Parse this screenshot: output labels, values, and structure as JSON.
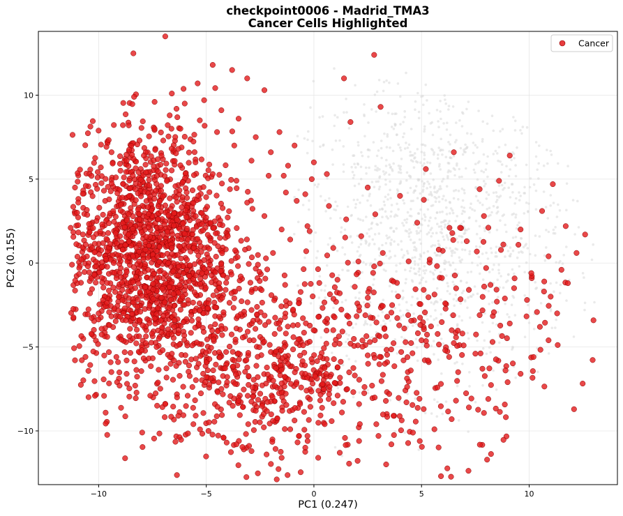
{
  "chart_data": {
    "type": "scatter",
    "title_line1": "checkpoint0006 - Madrid_TMA3",
    "title_line2": "Cancer Cells Highlighted",
    "xlabel": "PC1 (0.247)",
    "ylabel": "PC2 (0.155)",
    "xlim": [
      -12.8,
      14.1
    ],
    "ylim": [
      -13.2,
      13.8
    ],
    "xticks": [
      -10,
      -5,
      0,
      5,
      10
    ],
    "yticks": [
      -10,
      -5,
      0,
      5,
      10
    ],
    "xtick_labels": [
      "−10",
      "−5",
      "0",
      "5",
      "10"
    ],
    "ytick_labels": [
      "−10",
      "−5",
      "0",
      "5",
      "10"
    ],
    "grid": true,
    "legend": {
      "position": "top-right",
      "entries": [
        "Cancer"
      ]
    },
    "series": [
      {
        "name": "Cancer",
        "color": "#e31a1c",
        "highlight": true,
        "points": [
          [
            -10.6,
            4.6
          ],
          [
            -11.1,
            4.5
          ],
          [
            -11.3,
            2.1
          ],
          [
            -10.8,
            0.2
          ],
          [
            -10.4,
            -1.8
          ],
          [
            -10.0,
            -3.0
          ],
          [
            -9.6,
            -4.4
          ],
          [
            -9.1,
            -5.9
          ],
          [
            -8.7,
            -6.6
          ],
          [
            -8.3,
            -7.3
          ],
          [
            -7.6,
            -7.9
          ],
          [
            -6.9,
            -8.4
          ],
          [
            -6.3,
            -9.1
          ],
          [
            -5.6,
            -9.6
          ],
          [
            -4.9,
            -10.0
          ],
          [
            -4.2,
            -10.4
          ],
          [
            -3.6,
            -10.8
          ],
          [
            -2.9,
            -11.2
          ],
          [
            -2.2,
            -11.4
          ],
          [
            -1.5,
            -11.6
          ],
          [
            -0.4,
            -11.0
          ],
          [
            0.2,
            -11.6
          ],
          [
            1.2,
            -11.3
          ],
          [
            2.1,
            -10.6
          ],
          [
            3.0,
            -10.3
          ],
          [
            3.6,
            -10.8
          ],
          [
            4.6,
            -10.1
          ],
          [
            5.6,
            -9.9
          ],
          [
            6.4,
            -9.3
          ],
          [
            7.2,
            -8.6
          ],
          [
            8.1,
            -8.1
          ],
          [
            9.0,
            -7.1
          ],
          [
            9.6,
            -6.6
          ],
          [
            10.2,
            -5.6
          ],
          [
            10.9,
            -4.6
          ],
          [
            11.3,
            -3.0
          ],
          [
            11.8,
            -1.2
          ],
          [
            12.2,
            0.6
          ],
          [
            12.6,
            1.7
          ],
          [
            11.7,
            2.2
          ],
          [
            11.1,
            4.7
          ],
          [
            10.6,
            3.1
          ],
          [
            9.1,
            6.4
          ],
          [
            8.6,
            4.9
          ],
          [
            7.7,
            4.4
          ],
          [
            6.5,
            6.6
          ],
          [
            5.2,
            5.6
          ],
          [
            3.1,
            9.3
          ],
          [
            2.8,
            12.4
          ],
          [
            1.4,
            11.0
          ],
          [
            1.7,
            8.4
          ],
          [
            0.6,
            5.3
          ],
          [
            -0.1,
            5.0
          ],
          [
            -0.4,
            4.1
          ],
          [
            -1.2,
            5.8
          ],
          [
            -1.6,
            7.8
          ],
          [
            -2.3,
            10.3
          ],
          [
            -3.1,
            11.0
          ],
          [
            -3.8,
            11.5
          ],
          [
            -4.7,
            11.8
          ],
          [
            -5.4,
            10.7
          ],
          [
            -6.6,
            10.1
          ],
          [
            -7.4,
            9.6
          ],
          [
            -8.6,
            8.2
          ],
          [
            -9.4,
            6.6
          ],
          [
            -9.9,
            5.7
          ],
          [
            -8.9,
            3.9
          ],
          [
            -8.1,
            2.6
          ],
          [
            -7.3,
            1.8
          ],
          [
            -6.6,
            0.9
          ],
          [
            -5.9,
            0.2
          ],
          [
            -5.2,
            -0.6
          ],
          [
            -4.4,
            -1.2
          ],
          [
            -3.7,
            -2.1
          ],
          [
            -2.9,
            -2.8
          ],
          [
            -2.1,
            -3.5
          ],
          [
            -1.3,
            -4.2
          ],
          [
            -0.5,
            -4.9
          ],
          [
            0.3,
            -5.6
          ],
          [
            1.1,
            -6.2
          ],
          [
            1.9,
            -6.7
          ],
          [
            2.7,
            -7.3
          ],
          [
            3.5,
            -7.8
          ],
          [
            4.3,
            -8.3
          ],
          [
            5.1,
            -8.7
          ],
          [
            5.9,
            -7.2
          ],
          [
            6.7,
            -6.5
          ],
          [
            7.5,
            -5.4
          ],
          [
            8.3,
            -4.7
          ],
          [
            9.1,
            -3.6
          ],
          [
            9.9,
            -2.2
          ],
          [
            10.7,
            -1.1
          ],
          [
            11.5,
            -0.4
          ],
          [
            1.2,
            -1.8
          ],
          [
            2.1,
            -2.6
          ],
          [
            3.4,
            -3.2
          ],
          [
            4.2,
            -3.9
          ],
          [
            5.0,
            -4.6
          ],
          [
            3.7,
            -1.1
          ],
          [
            6.1,
            -2.4
          ],
          [
            7.2,
            -1.6
          ],
          [
            8.0,
            -0.3
          ],
          [
            8.8,
            1.1
          ],
          [
            9.6,
            2.0
          ],
          [
            7.1,
            1.3
          ],
          [
            5.8,
            0.8
          ],
          [
            4.4,
            0.1
          ],
          [
            3.2,
            0.6
          ],
          [
            2.2,
            1.6
          ],
          [
            1.5,
            2.6
          ],
          [
            0.7,
            3.4
          ],
          [
            -0.3,
            2.2
          ],
          [
            -1.1,
            1.4
          ],
          [
            -1.9,
            0.6
          ],
          [
            -2.6,
            -0.1
          ],
          [
            -3.4,
            -0.8
          ],
          [
            -4.1,
            -1.6
          ],
          [
            -4.9,
            -2.4
          ],
          [
            -5.7,
            -3.1
          ],
          [
            -6.5,
            -3.8
          ],
          [
            -7.2,
            -4.5
          ],
          [
            -8.0,
            -5.2
          ],
          [
            -8.7,
            -5.8
          ],
          [
            -9.5,
            -3.7
          ],
          [
            -9.8,
            -2.2
          ],
          [
            -10.2,
            -0.7
          ],
          [
            -10.3,
            0.9
          ],
          [
            -10.1,
            2.5
          ],
          [
            -9.7,
            3.7
          ],
          [
            -9.2,
            5.1
          ],
          [
            -8.7,
            6.1
          ],
          [
            -8.1,
            7.3
          ],
          [
            -7.4,
            8.0
          ],
          [
            -6.7,
            8.8
          ],
          [
            -6.0,
            9.5
          ],
          [
            -5.1,
            9.7
          ],
          [
            -4.3,
            9.1
          ],
          [
            -3.5,
            8.6
          ],
          [
            -2.7,
            7.5
          ],
          [
            -2.0,
            6.6
          ],
          [
            -1.4,
            5.2
          ],
          [
            -0.8,
            3.7
          ],
          [
            -0.2,
            1.9
          ],
          [
            -7.8,
            5.4
          ],
          [
            -7.1,
            4.6
          ],
          [
            -6.4,
            3.9
          ],
          [
            -5.6,
            3.1
          ],
          [
            -4.8,
            2.4
          ],
          [
            -4.0,
            1.6
          ],
          [
            -3.2,
            0.8
          ],
          [
            -6.3,
            6.8
          ],
          [
            -5.5,
            6.0
          ],
          [
            -4.7,
            5.3
          ],
          [
            -3.9,
            4.4
          ],
          [
            -3.1,
            3.6
          ],
          [
            -2.3,
            2.8
          ],
          [
            -1.5,
            2.0
          ],
          [
            -8.4,
            0.4
          ],
          [
            -7.7,
            -0.4
          ],
          [
            -6.9,
            -1.2
          ],
          [
            -6.1,
            -2.0
          ],
          [
            -5.3,
            -2.8
          ],
          [
            -8.9,
            -1.6
          ],
          [
            -8.2,
            -2.6
          ],
          [
            -7.4,
            -3.3
          ],
          [
            -6.6,
            -5.4
          ],
          [
            -5.8,
            -6.1
          ],
          [
            -5.0,
            -6.8
          ],
          [
            -4.3,
            -7.5
          ],
          [
            -3.5,
            -8.2
          ],
          [
            -2.7,
            -8.8
          ],
          [
            -1.9,
            -9.4
          ],
          [
            -1.1,
            -9.9
          ],
          [
            -0.3,
            -10.3
          ],
          [
            0.5,
            -9.6
          ],
          [
            1.3,
            -8.9
          ],
          [
            2.1,
            -8.4
          ],
          [
            2.9,
            -9.6
          ],
          [
            3.7,
            -9.1
          ],
          [
            4.5,
            -6.4
          ],
          [
            5.3,
            -5.8
          ],
          [
            6.1,
            -5.2
          ],
          [
            6.9,
            -4.2
          ],
          [
            7.7,
            -3.1
          ],
          [
            8.5,
            -2.3
          ],
          [
            9.3,
            -1.5
          ],
          [
            10.1,
            -0.6
          ],
          [
            10.9,
            0.4
          ],
          [
            0.9,
            -4.0
          ],
          [
            1.7,
            -4.8
          ],
          [
            2.5,
            -5.5
          ],
          [
            3.3,
            -6.0
          ],
          [
            0.4,
            -7.2
          ],
          [
            -0.4,
            -6.6
          ],
          [
            -1.2,
            -6.0
          ],
          [
            -2.0,
            -5.3
          ],
          [
            -2.8,
            -4.6
          ],
          [
            -3.6,
            -3.9
          ],
          [
            -4.4,
            -3.2
          ],
          [
            -9.3,
            0.0
          ],
          [
            -9.0,
            1.6
          ],
          [
            -8.6,
            2.9
          ],
          [
            -8.3,
            4.4
          ],
          [
            -7.9,
            6.4
          ],
          [
            -7.0,
            7.3
          ],
          [
            -6.2,
            8.0
          ],
          [
            -5.3,
            8.5
          ],
          [
            -4.5,
            7.8
          ],
          [
            -3.7,
            7.0
          ],
          [
            -2.9,
            6.1
          ],
          [
            -2.1,
            5.2
          ],
          [
            -1.3,
            4.2
          ],
          [
            -10.6,
            1.1
          ],
          [
            -10.5,
            -0.2
          ],
          [
            -10.9,
            -0.3
          ],
          [
            -11.0,
            3.0
          ],
          [
            4.8,
            2.4
          ],
          [
            6.3,
            2.1
          ],
          [
            5.1,
            -1.6
          ],
          [
            2.8,
            -0.2
          ],
          [
            0.9,
            0.9
          ],
          [
            -0.7,
            -2.4
          ],
          [
            1.6,
            -3.2
          ],
          [
            6.6,
            -8.2
          ],
          [
            8.9,
            -6.4
          ],
          [
            10.5,
            -3.8
          ],
          [
            11.0,
            -2.0
          ],
          [
            7.9,
            2.8
          ],
          [
            4.0,
            4.0
          ],
          [
            2.5,
            4.5
          ],
          [
            0.0,
            6.0
          ],
          [
            -0.9,
            7.0
          ]
        ]
      }
    ]
  }
}
